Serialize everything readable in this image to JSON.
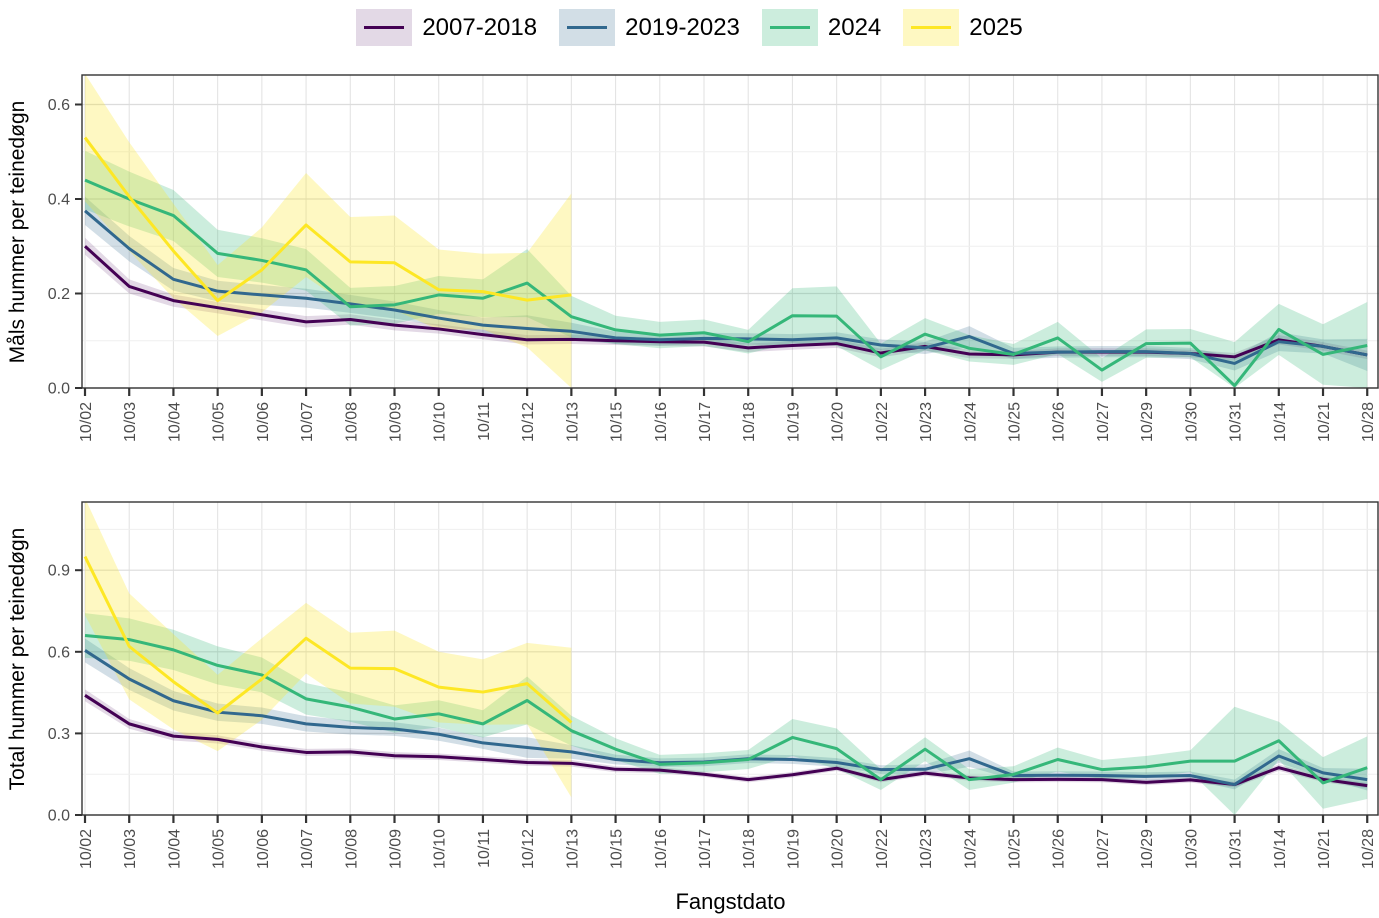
{
  "x_axis_title": "Fangstdato",
  "categories": [
    "10/02",
    "10/03",
    "10/04",
    "10/05",
    "10/06",
    "10/07",
    "10/08",
    "10/09",
    "10/10",
    "10/11",
    "10/12",
    "10/13",
    "10/15",
    "10/16",
    "10/17",
    "10/18",
    "10/19",
    "10/20",
    "10/22",
    "10/23",
    "10/24",
    "10/25",
    "10/26",
    "10/27",
    "10/29",
    "10/30",
    "10/31",
    "10/14",
    "10/21",
    "10/28"
  ],
  "chart_data": [
    {
      "type": "line",
      "title": "",
      "xlabel": "",
      "ylabel": "Måls hummer per teinedøgn",
      "ylim": [
        0,
        0.66
      ],
      "yticks": [
        0.0,
        0.2,
        0.4,
        0.6
      ],
      "ytick_labels": [
        "0.0",
        "0.2",
        "0.4",
        "0.6"
      ],
      "grid": true,
      "legend_position": "top",
      "categories": [
        "10/02",
        "10/03",
        "10/04",
        "10/05",
        "10/06",
        "10/07",
        "10/08",
        "10/09",
        "10/10",
        "10/11",
        "10/12",
        "10/13",
        "10/15",
        "10/16",
        "10/17",
        "10/18",
        "10/19",
        "10/20",
        "10/22",
        "10/23",
        "10/24",
        "10/25",
        "10/26",
        "10/27",
        "10/29",
        "10/30",
        "10/31",
        "10/14",
        "10/21",
        "10/28"
      ],
      "series": [
        {
          "name": "2007-2018",
          "color": "#440154",
          "fill": "rgba(68,1,84,0.15)",
          "values": [
            0.3,
            0.215,
            0.185,
            0.17,
            0.155,
            0.14,
            0.145,
            0.133,
            0.125,
            0.113,
            0.102,
            0.103,
            0.1,
            0.098,
            0.097,
            0.085,
            0.09,
            0.094,
            0.074,
            0.088,
            0.072,
            0.07,
            0.076,
            0.076,
            0.076,
            0.073,
            0.066,
            0.102,
            0.088,
            0.07
          ],
          "band_halfwidth": [
            0.018,
            0.015,
            0.013,
            0.012,
            0.012,
            0.012,
            0.011,
            0.011,
            0.01,
            0.01,
            0.01,
            0.01,
            0.009,
            0.009,
            0.009,
            0.009,
            0.009,
            0.009,
            0.009,
            0.009,
            0.009,
            0.008,
            0.008,
            0.008,
            0.008,
            0.008,
            0.008,
            0.01,
            0.009,
            0.009
          ]
        },
        {
          "name": "2019-2023",
          "color": "#31688E",
          "fill": "rgba(49,104,142,0.22)",
          "values": [
            0.375,
            0.295,
            0.23,
            0.205,
            0.197,
            0.19,
            0.178,
            0.165,
            0.148,
            0.133,
            0.126,
            0.12,
            0.106,
            0.102,
            0.105,
            0.104,
            0.102,
            0.106,
            0.091,
            0.085,
            0.109,
            0.073,
            0.076,
            0.077,
            0.077,
            0.073,
            0.052,
            0.098,
            0.088,
            0.07
          ],
          "band_halfwidth": [
            0.03,
            0.027,
            0.024,
            0.022,
            0.021,
            0.02,
            0.019,
            0.018,
            0.017,
            0.016,
            0.028,
            0.018,
            0.013,
            0.012,
            0.012,
            0.012,
            0.012,
            0.012,
            0.012,
            0.013,
            0.022,
            0.012,
            0.012,
            0.012,
            0.012,
            0.012,
            0.015,
            0.02,
            0.015,
            0.034
          ]
        },
        {
          "name": "2024",
          "color": "#35B779",
          "fill": "rgba(53,183,121,0.25)",
          "values": [
            0.44,
            0.4,
            0.365,
            0.285,
            0.27,
            0.25,
            0.172,
            0.176,
            0.197,
            0.19,
            0.222,
            0.151,
            0.123,
            0.112,
            0.117,
            0.098,
            0.153,
            0.152,
            0.066,
            0.114,
            0.084,
            0.071,
            0.106,
            0.038,
            0.094,
            0.095,
            0.005,
            0.124,
            0.071,
            0.09
          ],
          "band_halfwidth": [
            0.062,
            0.058,
            0.054,
            0.05,
            0.047,
            0.044,
            0.04,
            0.04,
            0.04,
            0.04,
            0.072,
            0.044,
            0.03,
            0.028,
            0.028,
            0.025,
            0.058,
            0.063,
            0.028,
            0.034,
            0.028,
            0.022,
            0.034,
            0.025,
            0.03,
            0.03,
            0.092,
            0.054,
            0.064,
            0.092
          ]
        },
        {
          "name": "2025",
          "color": "#FDE725",
          "fill": "rgba(253,231,37,0.28)",
          "values": [
            0.53,
            0.405,
            0.29,
            0.185,
            0.25,
            0.345,
            0.267,
            0.265,
            0.208,
            0.204,
            0.186,
            0.197,
            null,
            null,
            null,
            null,
            null,
            null,
            null,
            null,
            null,
            null,
            null,
            null,
            null,
            null,
            null,
            null,
            null,
            null
          ],
          "band_halfwidth": [
            0.135,
            0.115,
            0.1,
            0.075,
            0.09,
            0.11,
            0.095,
            0.1,
            0.085,
            0.08,
            0.1,
            0.215,
            null,
            null,
            null,
            null,
            null,
            null,
            null,
            null,
            null,
            null,
            null,
            null,
            null,
            null,
            null,
            null,
            null,
            null
          ]
        }
      ]
    },
    {
      "type": "line",
      "title": "",
      "xlabel": "Fangstdato",
      "ylabel": "Total hummer per teinedøgn",
      "ylim": [
        0,
        1.15
      ],
      "yticks": [
        0.0,
        0.3,
        0.6,
        0.9
      ],
      "ytick_labels": [
        "0.0",
        "0.3",
        "0.6",
        "0.9"
      ],
      "grid": true,
      "legend_position": "top",
      "categories": [
        "10/02",
        "10/03",
        "10/04",
        "10/05",
        "10/06",
        "10/07",
        "10/08",
        "10/09",
        "10/10",
        "10/11",
        "10/12",
        "10/13",
        "10/15",
        "10/16",
        "10/17",
        "10/18",
        "10/19",
        "10/20",
        "10/22",
        "10/23",
        "10/24",
        "10/25",
        "10/26",
        "10/27",
        "10/29",
        "10/30",
        "10/31",
        "10/14",
        "10/21",
        "10/28"
      ],
      "series": [
        {
          "name": "2007-2018",
          "color": "#440154",
          "fill": "rgba(68,1,84,0.15)",
          "values": [
            0.44,
            0.335,
            0.29,
            0.278,
            0.25,
            0.23,
            0.232,
            0.218,
            0.214,
            0.204,
            0.193,
            0.19,
            0.168,
            0.165,
            0.15,
            0.13,
            0.148,
            0.172,
            0.13,
            0.154,
            0.136,
            0.13,
            0.131,
            0.13,
            0.12,
            0.129,
            0.112,
            0.174,
            0.131,
            0.108
          ],
          "band_halfwidth": [
            0.022,
            0.018,
            0.016,
            0.015,
            0.014,
            0.013,
            0.013,
            0.013,
            0.012,
            0.012,
            0.012,
            0.012,
            0.011,
            0.011,
            0.01,
            0.01,
            0.01,
            0.01,
            0.01,
            0.01,
            0.01,
            0.01,
            0.01,
            0.01,
            0.01,
            0.01,
            0.01,
            0.012,
            0.01,
            0.01
          ]
        },
        {
          "name": "2019-2023",
          "color": "#31688E",
          "fill": "rgba(49,104,142,0.22)",
          "values": [
            0.605,
            0.5,
            0.42,
            0.378,
            0.365,
            0.335,
            0.322,
            0.316,
            0.297,
            0.265,
            0.248,
            0.232,
            0.204,
            0.192,
            0.195,
            0.207,
            0.204,
            0.193,
            0.167,
            0.168,
            0.207,
            0.145,
            0.146,
            0.145,
            0.142,
            0.145,
            0.112,
            0.217,
            0.155,
            0.13
          ],
          "band_halfwidth": [
            0.044,
            0.04,
            0.036,
            0.032,
            0.03,
            0.028,
            0.026,
            0.025,
            0.024,
            0.022,
            0.038,
            0.025,
            0.018,
            0.016,
            0.016,
            0.016,
            0.016,
            0.016,
            0.016,
            0.018,
            0.03,
            0.015,
            0.015,
            0.015,
            0.015,
            0.015,
            0.018,
            0.025,
            0.018,
            0.04
          ]
        },
        {
          "name": "2024",
          "color": "#35B779",
          "fill": "rgba(53,183,121,0.25)",
          "values": [
            0.66,
            0.645,
            0.607,
            0.55,
            0.515,
            0.427,
            0.397,
            0.353,
            0.372,
            0.335,
            0.421,
            0.31,
            0.242,
            0.186,
            0.192,
            0.204,
            0.285,
            0.244,
            0.13,
            0.242,
            0.13,
            0.149,
            0.204,
            0.167,
            0.177,
            0.198,
            0.198,
            0.273,
            0.118,
            0.174
          ],
          "band_halfwidth": [
            0.082,
            0.078,
            0.074,
            0.07,
            0.064,
            0.058,
            0.054,
            0.05,
            0.05,
            0.05,
            0.088,
            0.055,
            0.04,
            0.035,
            0.035,
            0.035,
            0.068,
            0.074,
            0.038,
            0.044,
            0.038,
            0.03,
            0.044,
            0.035,
            0.04,
            0.04,
            0.2,
            0.07,
            0.095,
            0.115
          ]
        },
        {
          "name": "2025",
          "color": "#FDE725",
          "fill": "rgba(253,231,37,0.28)",
          "values": [
            0.95,
            0.62,
            0.49,
            0.375,
            0.5,
            0.65,
            0.54,
            0.538,
            0.47,
            0.452,
            0.483,
            0.34,
            null,
            null,
            null,
            null,
            null,
            null,
            null,
            null,
            null,
            null,
            null,
            null,
            null,
            null,
            null,
            null,
            null,
            null
          ],
          "band_halfwidth": [
            0.215,
            0.195,
            0.175,
            0.14,
            0.15,
            0.13,
            0.13,
            0.14,
            0.13,
            0.12,
            0.15,
            0.275,
            null,
            null,
            null,
            null,
            null,
            null,
            null,
            null,
            null,
            null,
            null,
            null,
            null,
            null,
            null,
            null,
            null,
            null
          ]
        }
      ]
    }
  ]
}
